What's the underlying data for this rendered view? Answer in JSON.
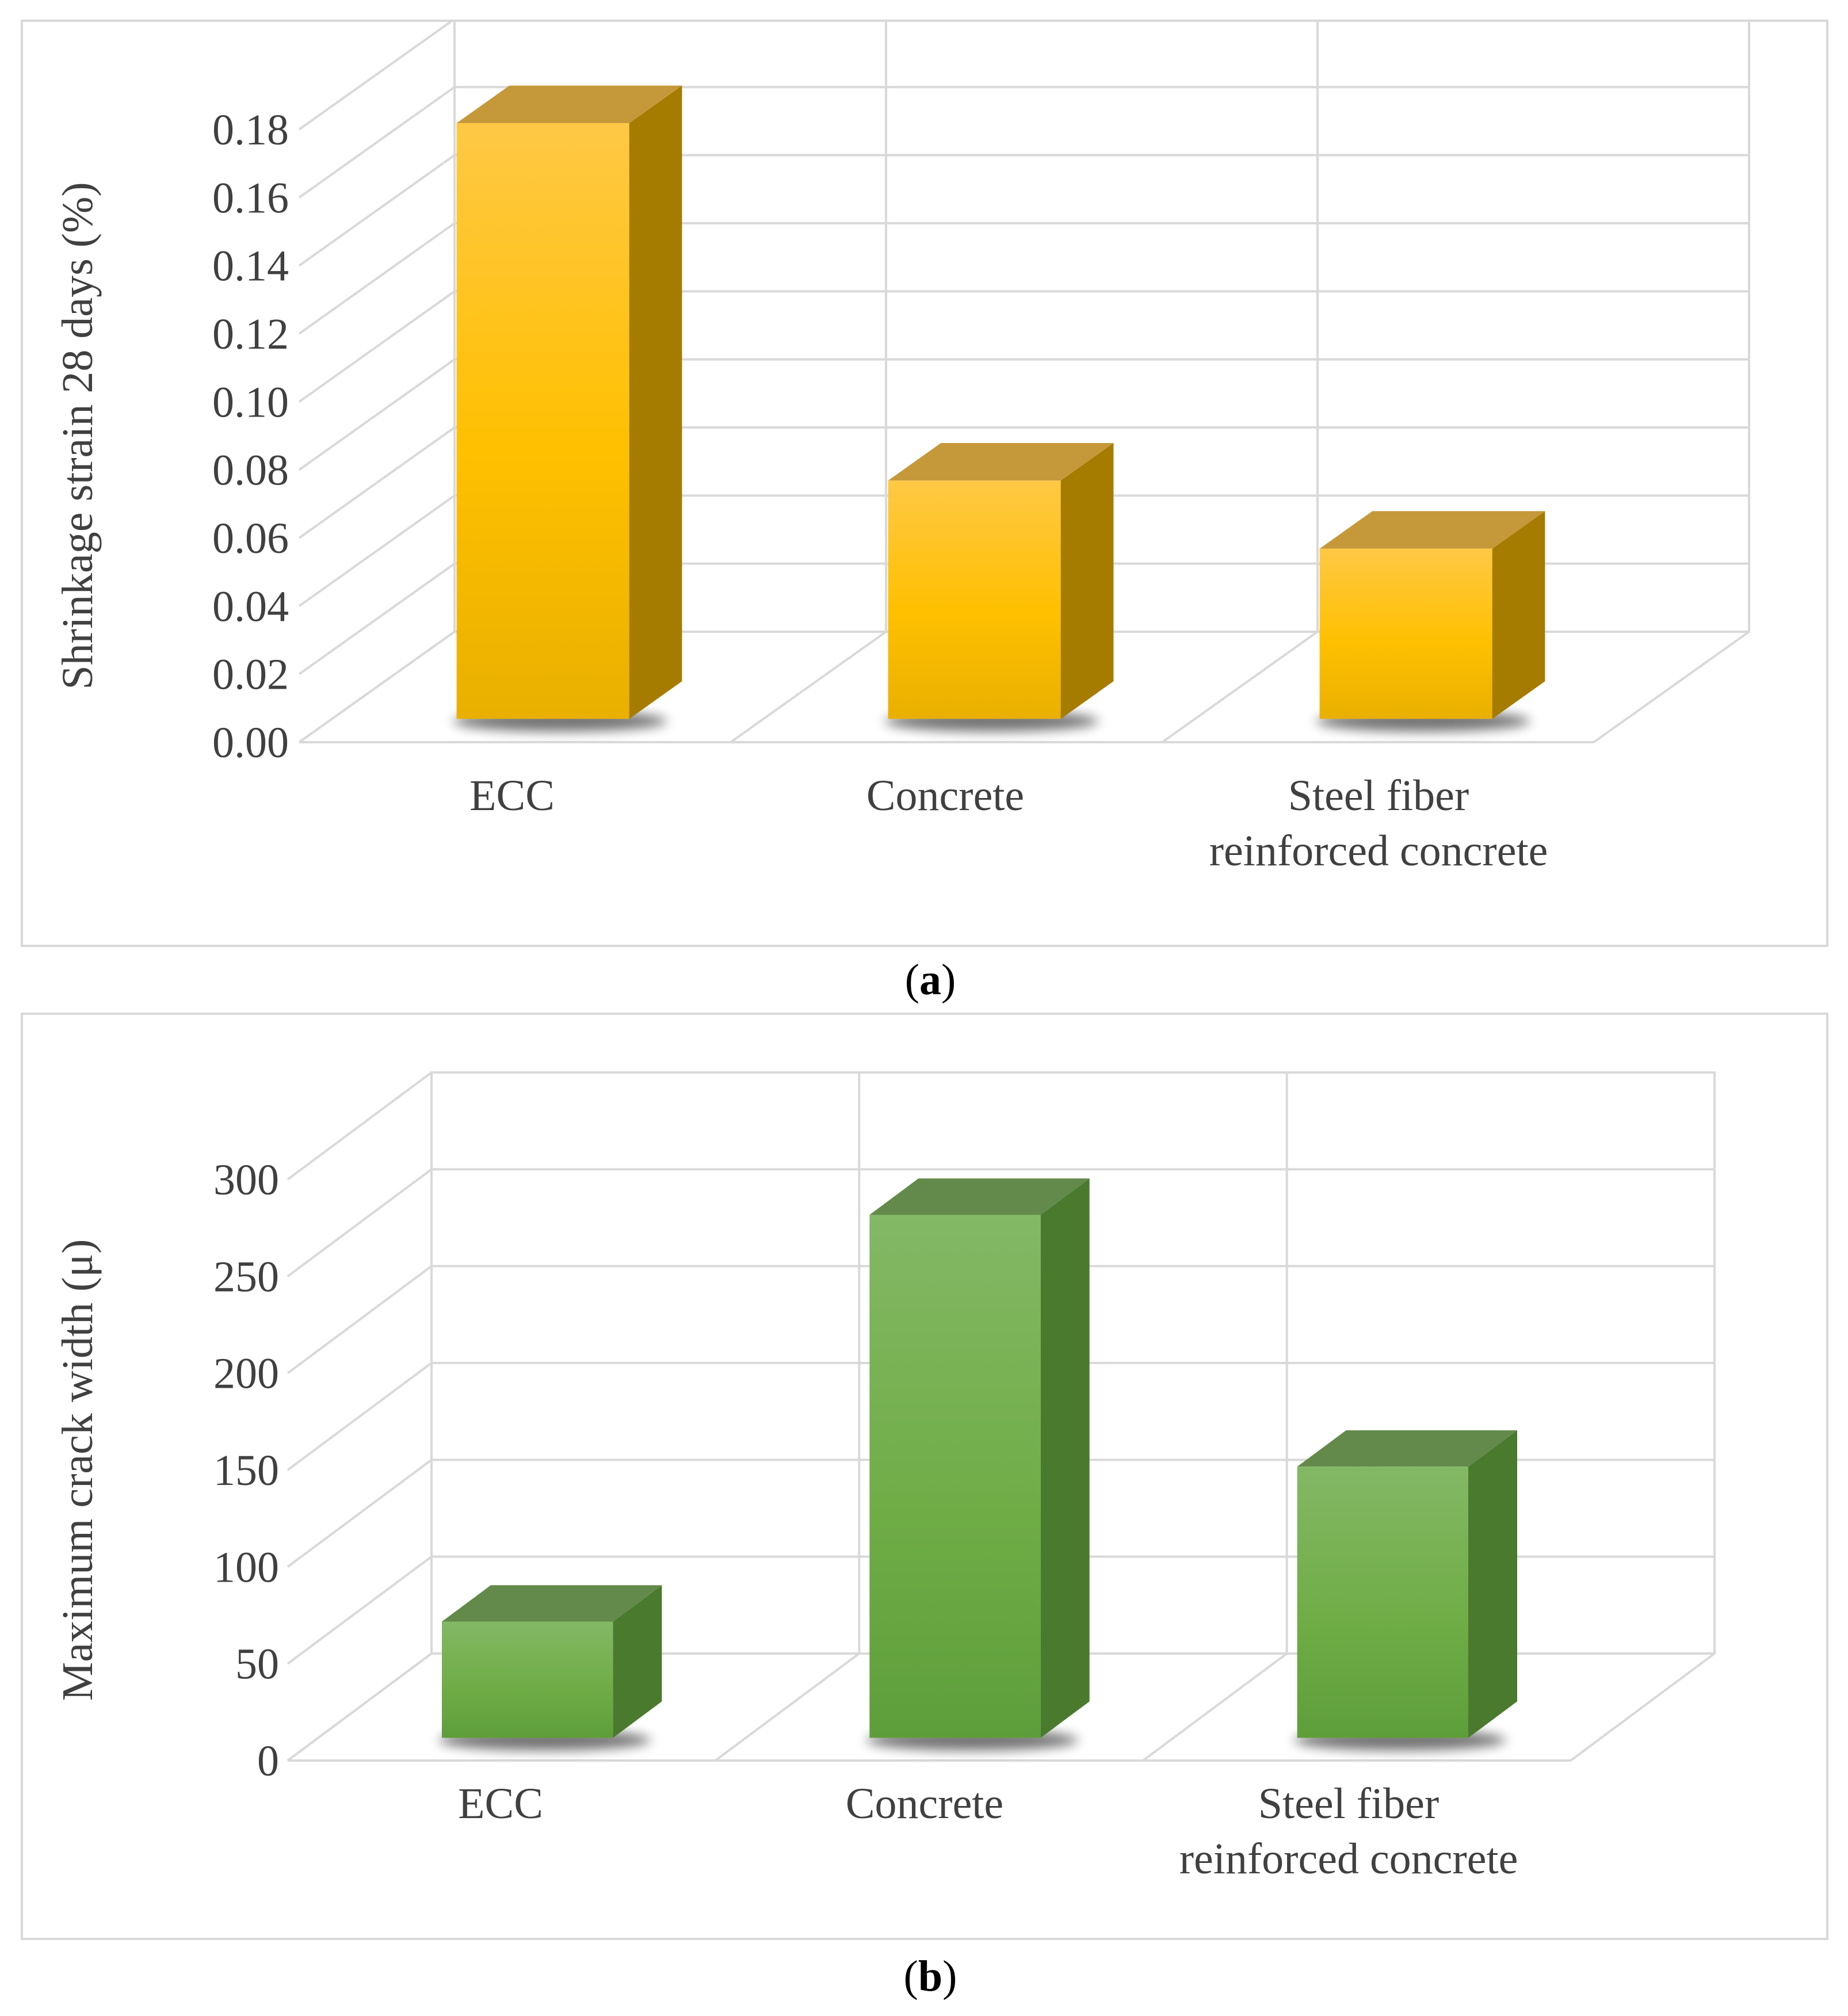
{
  "colors": {
    "grid": "#d9d9d9",
    "text": "#404040",
    "panel_a": {
      "front_top": "#ffc845",
      "front_mid": "#ffc000",
      "front_bottom": "#e9b000",
      "side": "#a57c00",
      "top": "#c5993a"
    },
    "panel_b": {
      "front_top": "#83b865",
      "front_mid": "#70ad47",
      "front_bottom": "#5e9e3a",
      "side": "#4a7a2e",
      "top": "#638a4a"
    }
  },
  "chart_data": [
    {
      "id": "a",
      "type": "bar",
      "caption": {
        "open": "(",
        "letter": "a",
        "close": ")"
      },
      "ylabel": "Shrinkage strain 28 days (%)",
      "xlabel": "",
      "ylim": [
        0,
        0.18
      ],
      "ticks": [
        0,
        0.02,
        0.04,
        0.06,
        0.08,
        0.1,
        0.12,
        0.14,
        0.16,
        0.18
      ],
      "tick_labels": [
        "0.00",
        "0.02",
        "0.04",
        "0.06",
        "0.08",
        "0.10",
        "0.12",
        "0.14",
        "0.16",
        "0.18"
      ],
      "grid": true,
      "categories": [
        [
          "ECC"
        ],
        [
          "Concrete"
        ],
        [
          "Steel fiber",
          "reinforced concrete"
        ]
      ],
      "values": [
        0.175,
        0.07,
        0.05
      ]
    },
    {
      "id": "b",
      "type": "bar",
      "caption": {
        "open": "(",
        "letter": "b",
        "close": ")"
      },
      "ylabel": "Maximum crack width (μ)",
      "xlabel": "",
      "ylim": [
        0,
        300
      ],
      "ticks": [
        0,
        50,
        100,
        150,
        200,
        250,
        300
      ],
      "tick_labels": [
        "0",
        "50",
        "100",
        "150",
        "200",
        "250",
        "300"
      ],
      "grid": true,
      "categories": [
        [
          "ECC"
        ],
        [
          "Concrete"
        ],
        [
          "Steel fiber",
          "reinforced concrete"
        ]
      ],
      "values": [
        60,
        270,
        140
      ]
    }
  ]
}
